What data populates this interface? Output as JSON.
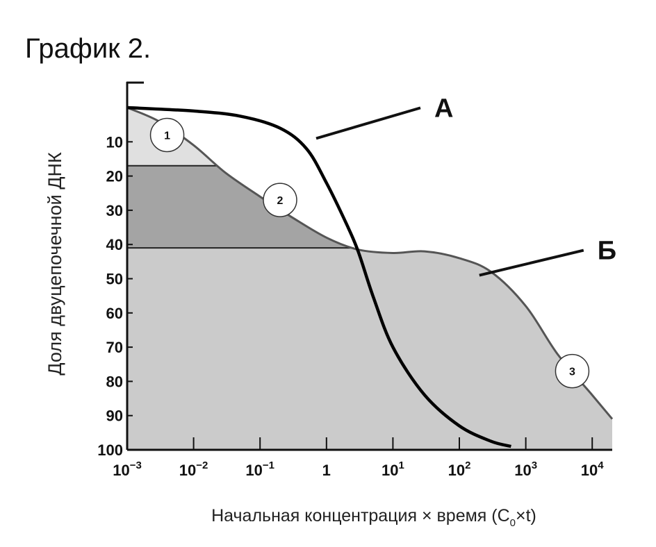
{
  "title": "График 2.",
  "chart_data": {
    "type": "line",
    "title": "График 2.",
    "ylabel": "Доля двуцепочечной ДНК",
    "xlabel": {
      "text": "Начальная концентрация × время (C",
      "sub": "0",
      "after": "×t)"
    },
    "x_scale": "log",
    "xlim": [
      0.001,
      20000
    ],
    "ylim": [
      0,
      100
    ],
    "y_inverted": true,
    "y_ticks": [
      10,
      20,
      30,
      40,
      50,
      60,
      70,
      80,
      90,
      100
    ],
    "x_ticks": [
      {
        "value": 0.001,
        "base": "10",
        "exp": "−3"
      },
      {
        "value": 0.01,
        "base": "10",
        "exp": "−2"
      },
      {
        "value": 0.1,
        "base": "10",
        "exp": "−1"
      },
      {
        "value": 1,
        "base": "1",
        "exp": ""
      },
      {
        "value": 10,
        "base": "10",
        "exp": "1"
      },
      {
        "value": 100,
        "base": "10",
        "exp": "2"
      },
      {
        "value": 1000,
        "base": "10",
        "exp": "3"
      },
      {
        "value": 10000,
        "base": "10",
        "exp": "4"
      }
    ],
    "series": [
      {
        "name": "А",
        "color": "#000000",
        "points": [
          [
            0.001,
            0
          ],
          [
            0.01,
            1
          ],
          [
            0.05,
            2.5
          ],
          [
            0.2,
            6
          ],
          [
            0.5,
            12
          ],
          [
            1,
            22
          ],
          [
            2,
            34
          ],
          [
            3,
            42
          ],
          [
            5,
            55
          ],
          [
            10,
            70
          ],
          [
            30,
            84
          ],
          [
            100,
            93
          ],
          [
            300,
            97.5
          ],
          [
            600,
            99
          ]
        ]
      },
      {
        "name": "Б",
        "color": "#555555",
        "points": [
          [
            0.001,
            0
          ],
          [
            0.003,
            4
          ],
          [
            0.01,
            11
          ],
          [
            0.03,
            19
          ],
          [
            0.1,
            26
          ],
          [
            0.3,
            32
          ],
          [
            1,
            38
          ],
          [
            3,
            41.5
          ],
          [
            10,
            42.5
          ],
          [
            30,
            42
          ],
          [
            100,
            44
          ],
          [
            300,
            48
          ],
          [
            1000,
            58
          ],
          [
            3000,
            72
          ],
          [
            10000,
            84
          ],
          [
            20000,
            91
          ]
        ]
      }
    ],
    "fractions": [
      {
        "label": "1",
        "color": "#e0e0e0",
        "from": 0,
        "to": 17
      },
      {
        "label": "2",
        "color": "#a4a4a4",
        "from": 17,
        "to": 41
      },
      {
        "label": "3",
        "color": "#cbcbcb",
        "from": 41,
        "to": 100
      }
    ],
    "fraction_markers": [
      {
        "label": "1",
        "x": 0.004,
        "y": 8
      },
      {
        "label": "2",
        "x": 0.2,
        "y": 27
      },
      {
        "label": "3",
        "x": 5000,
        "y": 77
      }
    ],
    "series_labels": [
      {
        "label": "А",
        "series": "А",
        "x": 0.7,
        "y": 9
      },
      {
        "label": "Б",
        "series": "Б",
        "x": 200,
        "y": 49
      }
    ]
  }
}
